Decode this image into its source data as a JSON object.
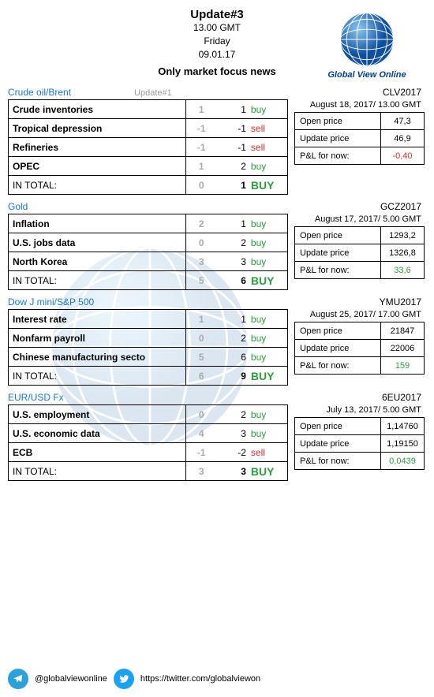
{
  "header": {
    "title": "Update#3",
    "time": "13.00 GMT",
    "day": "Friday",
    "date": "09.01.17",
    "subtitle": "Only market focus news"
  },
  "logo_text": "Global View Online",
  "update_label": "Update#1",
  "colors": {
    "buy": "#2e9b3f",
    "sell": "#d32f2f",
    "link": "#1976d2",
    "muted": "#aaaaaa"
  },
  "sections": [
    {
      "name": "Crude oil/Brent",
      "show_update": true,
      "ticker": "CLV2017",
      "ticker_date": "August 18, 2017/ 13.00 GMT",
      "rows": [
        {
          "label": "Crude inventories",
          "v1": "1",
          "v2": "1",
          "act": "buy",
          "cls": "buy"
        },
        {
          "label": "Tropical depression",
          "v1": "-1",
          "v2": "-1",
          "act": "sell",
          "cls": "sell"
        },
        {
          "label": "Refineries",
          "v1": "-1",
          "v2": "-1",
          "act": "sell",
          "cls": "sell"
        },
        {
          "label": "OPEC",
          "v1": "1",
          "v2": "2",
          "act": "buy",
          "cls": "buy"
        }
      ],
      "total": {
        "label": "IN TOTAL:",
        "v1": "0",
        "v2": "1",
        "act": "BUY",
        "cls": "BUY"
      },
      "prices": [
        {
          "label": "Open price",
          "val": "47,3",
          "cls": ""
        },
        {
          "label": "Update price",
          "val": "46,9",
          "cls": ""
        },
        {
          "label": "P&L for now:",
          "val": "-0,40",
          "cls": "neg"
        }
      ]
    },
    {
      "name": "Gold",
      "show_update": false,
      "ticker": "GCZ2017",
      "ticker_date": "August 17, 2017/ 5.00 GMT",
      "rows": [
        {
          "label": "Inflation",
          "v1": "2",
          "v2": "1",
          "act": "buy",
          "cls": "buy"
        },
        {
          "label": "U.S. jobs data",
          "v1": "0",
          "v2": "2",
          "act": "buy",
          "cls": "buy"
        },
        {
          "label": "North Korea",
          "v1": "3",
          "v2": "3",
          "act": "buy",
          "cls": "buy"
        }
      ],
      "total": {
        "label": "IN TOTAL:",
        "v1": "5",
        "v2": "6",
        "act": "BUY",
        "cls": "BUY"
      },
      "prices": [
        {
          "label": "Open price",
          "val": "1293,2",
          "cls": ""
        },
        {
          "label": "Update price",
          "val": "1326,8",
          "cls": ""
        },
        {
          "label": "P&L for now:",
          "val": "33,6",
          "cls": "pos"
        }
      ]
    },
    {
      "name": "Dow J mini/S&P 500",
      "show_update": false,
      "ticker": "YMU2017",
      "ticker_date": "August 25, 2017/ 17.00 GMT",
      "rows": [
        {
          "label": "Interest rate",
          "v1": "1",
          "v2": "1",
          "act": "buy",
          "cls": "buy"
        },
        {
          "label": "Nonfarm payroll",
          "v1": "0",
          "v2": "2",
          "act": "buy",
          "cls": "buy"
        },
        {
          "label": "Chinese manufacturing secto",
          "v1": "5",
          "v2": "6",
          "act": "buy",
          "cls": "buy"
        }
      ],
      "total": {
        "label": "IN TOTAL:",
        "v1": "6",
        "v2": "9",
        "act": "BUY",
        "cls": "BUY"
      },
      "prices": [
        {
          "label": "Open price",
          "val": "21847",
          "cls": ""
        },
        {
          "label": "Update price",
          "val": "22006",
          "cls": ""
        },
        {
          "label": "P&L for now:",
          "val": "159",
          "cls": "pos"
        }
      ]
    },
    {
      "name": "EUR/USD Fx",
      "show_update": false,
      "ticker": "6EU2017",
      "ticker_date": "July 13, 2017/ 5.00 GMT",
      "rows": [
        {
          "label": "U.S. employment",
          "v1": "0",
          "v2": "2",
          "act": "buy",
          "cls": "buy"
        },
        {
          "label": "U.S. economic data",
          "v1": "4",
          "v2": "3",
          "act": "buy",
          "cls": "buy"
        },
        {
          "label": "ECB",
          "v1": "-1",
          "v2": "-2",
          "act": "sell",
          "cls": "sell"
        }
      ],
      "total": {
        "label": "IN TOTAL:",
        "v1": "3",
        "v2": "3",
        "act": "BUY",
        "cls": "BUY"
      },
      "prices": [
        {
          "label": "Open price",
          "val": "1,14760",
          "cls": ""
        },
        {
          "label": "Update price",
          "val": "1,19150",
          "cls": ""
        },
        {
          "label": "P&L for now:",
          "val": "0,0439",
          "cls": "pos"
        }
      ]
    }
  ],
  "footer": {
    "telegram": "@globalviewonline",
    "twitter": "https://twitter.com/globalviewon"
  }
}
